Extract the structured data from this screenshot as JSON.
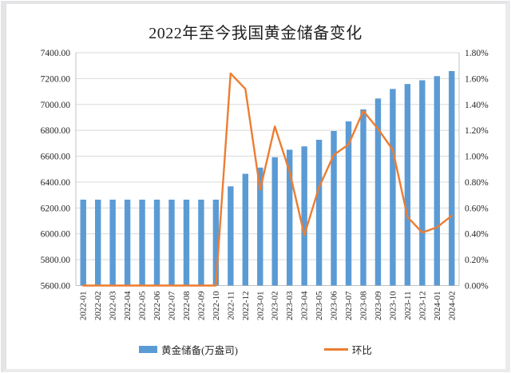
{
  "chart_data": {
    "type": "bar+line",
    "title": "2022年至今我国黄金储备变化",
    "categories": [
      "2022-01",
      "2022-02",
      "2022-03",
      "2022-04",
      "2022-05",
      "2022-06",
      "2022-07",
      "2022-08",
      "2022-09",
      "2022-10",
      "2022-11",
      "2022-12",
      "2023-01",
      "2023-02",
      "2023-03",
      "2023-04",
      "2023-05",
      "2023-06",
      "2023-07",
      "2023-08",
      "2023-09",
      "2023-10",
      "2023-11",
      "2023-12",
      "2024-01",
      "2024-02"
    ],
    "series": [
      {
        "name": "黄金储备(万盎司)",
        "type": "bar",
        "y_axis": "left",
        "color": "#5B9BD5",
        "values": [
          6264,
          6264,
          6264,
          6264,
          6264,
          6264,
          6264,
          6264,
          6264,
          6264,
          6367,
          6464,
          6512,
          6592,
          6650,
          6676,
          6727,
          6795,
          6869,
          6962,
          7046,
          7120,
          7158,
          7187,
          7219,
          7258
        ]
      },
      {
        "name": "环比",
        "type": "line",
        "y_axis": "right",
        "color": "#ED7D31",
        "values": [
          0.0,
          0.0,
          0.0,
          0.0,
          0.0,
          0.0,
          0.0,
          0.0,
          0.0,
          0.0,
          1.64,
          1.52,
          0.74,
          1.23,
          0.88,
          0.39,
          0.76,
          1.01,
          1.09,
          1.35,
          1.21,
          1.05,
          0.53,
          0.41,
          0.45,
          0.54
        ]
      }
    ],
    "left_axis": {
      "min": 5600,
      "max": 7400,
      "step": 200,
      "tick_labels": [
        "7400.00",
        "7200.00",
        "7000.00",
        "6800.00",
        "6600.00",
        "6400.00",
        "6200.00",
        "6000.00",
        "5800.00",
        "5600.00"
      ]
    },
    "right_axis": {
      "min": 0,
      "max": 1.8,
      "step": 0.2,
      "tick_labels": [
        "1.80%",
        "1.60%",
        "1.40%",
        "1.20%",
        "1.00%",
        "0.80%",
        "0.60%",
        "0.40%",
        "0.20%",
        "0.00%"
      ]
    },
    "grid": "horizontal",
    "grid_color": "#D9D9D9",
    "axis_line_color": "#C0C0C0",
    "text_color": "#262626",
    "legend_position": "bottom"
  }
}
